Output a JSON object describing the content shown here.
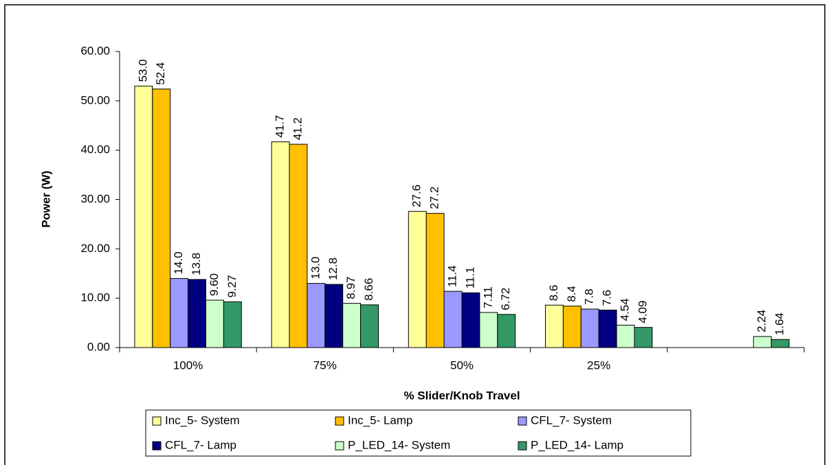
{
  "chart_data": {
    "type": "bar",
    "y_label": "Power (W)",
    "x_label": "% Slider/Knob Travel",
    "categories": [
      "100%",
      "75%",
      "50%",
      "25%",
      null
    ],
    "series": [
      {
        "name": "Inc_5- System",
        "color": "#ffff99",
        "values": [
          53.0,
          41.7,
          27.6,
          8.6,
          null
        ],
        "value_labels": [
          "53.0",
          "41.7",
          "27.6",
          "8.6",
          null
        ]
      },
      {
        "name": "Inc_5- Lamp",
        "color": "#ffc000",
        "values": [
          52.4,
          41.2,
          27.2,
          8.4,
          null
        ],
        "value_labels": [
          "52.4",
          "41.2",
          "27.2",
          "8.4",
          null
        ]
      },
      {
        "name": "CFL_7- System",
        "color": "#9999ff",
        "values": [
          14.0,
          13.0,
          11.4,
          7.8,
          null
        ],
        "value_labels": [
          "14.0",
          "13.0",
          "11.4",
          "7.8",
          null
        ]
      },
      {
        "name": "CFL_7- Lamp",
        "color": "#000080",
        "values": [
          13.8,
          12.8,
          11.1,
          7.6,
          null
        ],
        "value_labels": [
          "13.8",
          "12.8",
          "11.1",
          "7.6",
          null
        ]
      },
      {
        "name": "P_LED_14- System",
        "color": "#ccffcc",
        "values": [
          9.6,
          8.97,
          7.11,
          4.54,
          2.24
        ],
        "value_labels": [
          "9.60",
          "8.97",
          "7.11",
          "4.54",
          "2.24"
        ]
      },
      {
        "name": "P_LED_14- Lamp",
        "color": "#339966",
        "values": [
          9.27,
          8.66,
          6.72,
          4.09,
          1.64
        ],
        "value_labels": [
          "9.27",
          "8.66",
          "6.72",
          "4.09",
          "1.64"
        ]
      }
    ],
    "ylim": [
      0,
      60
    ],
    "yticks": [
      {
        "value": 0,
        "label": "0.00"
      },
      {
        "value": 10,
        "label": "10.00"
      },
      {
        "value": 20,
        "label": "20.00"
      },
      {
        "value": 30,
        "label": "30.00"
      },
      {
        "value": 40,
        "label": "40.00"
      },
      {
        "value": 50,
        "label": "50.00"
      },
      {
        "value": 60,
        "label": "60.00"
      }
    ],
    "grid": false,
    "legend": "bottom"
  }
}
